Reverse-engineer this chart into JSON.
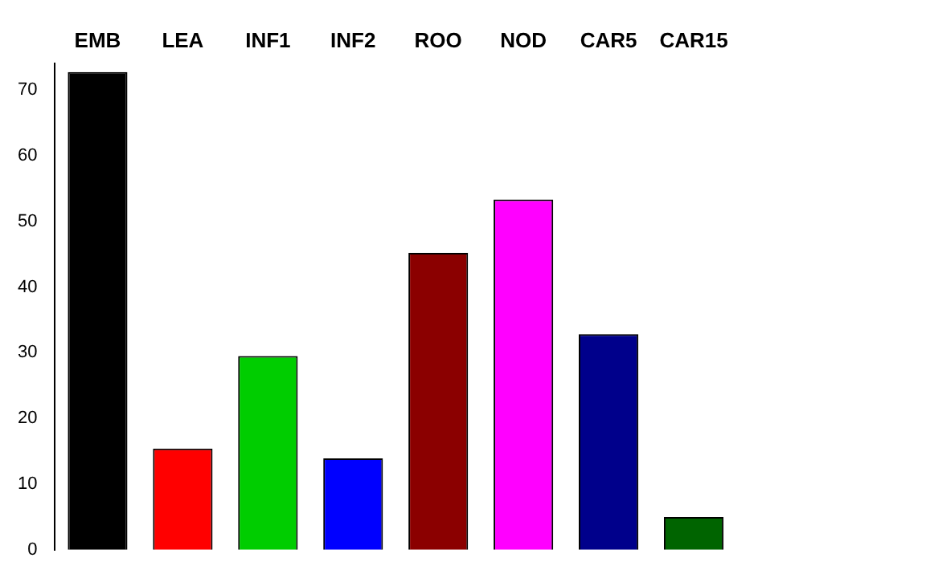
{
  "chart_data": {
    "type": "bar",
    "categories": [
      "EMB",
      "LEA",
      "INF1",
      "INF2",
      "ROO",
      "NOD",
      "CAR5",
      "CAR15"
    ],
    "values": [
      72.7,
      15.4,
      29.5,
      13.9,
      45.2,
      53.3,
      32.8,
      5.0
    ],
    "colors": [
      "#000000",
      "#ff0000",
      "#00cd00",
      "#0000ff",
      "#8b0000",
      "#ff00ff",
      "#00008b",
      "#006400"
    ],
    "ylim": [
      0,
      74
    ],
    "yticks": [
      0,
      10,
      20,
      30,
      40,
      50,
      60,
      70
    ],
    "grid": false,
    "legend": false
  }
}
